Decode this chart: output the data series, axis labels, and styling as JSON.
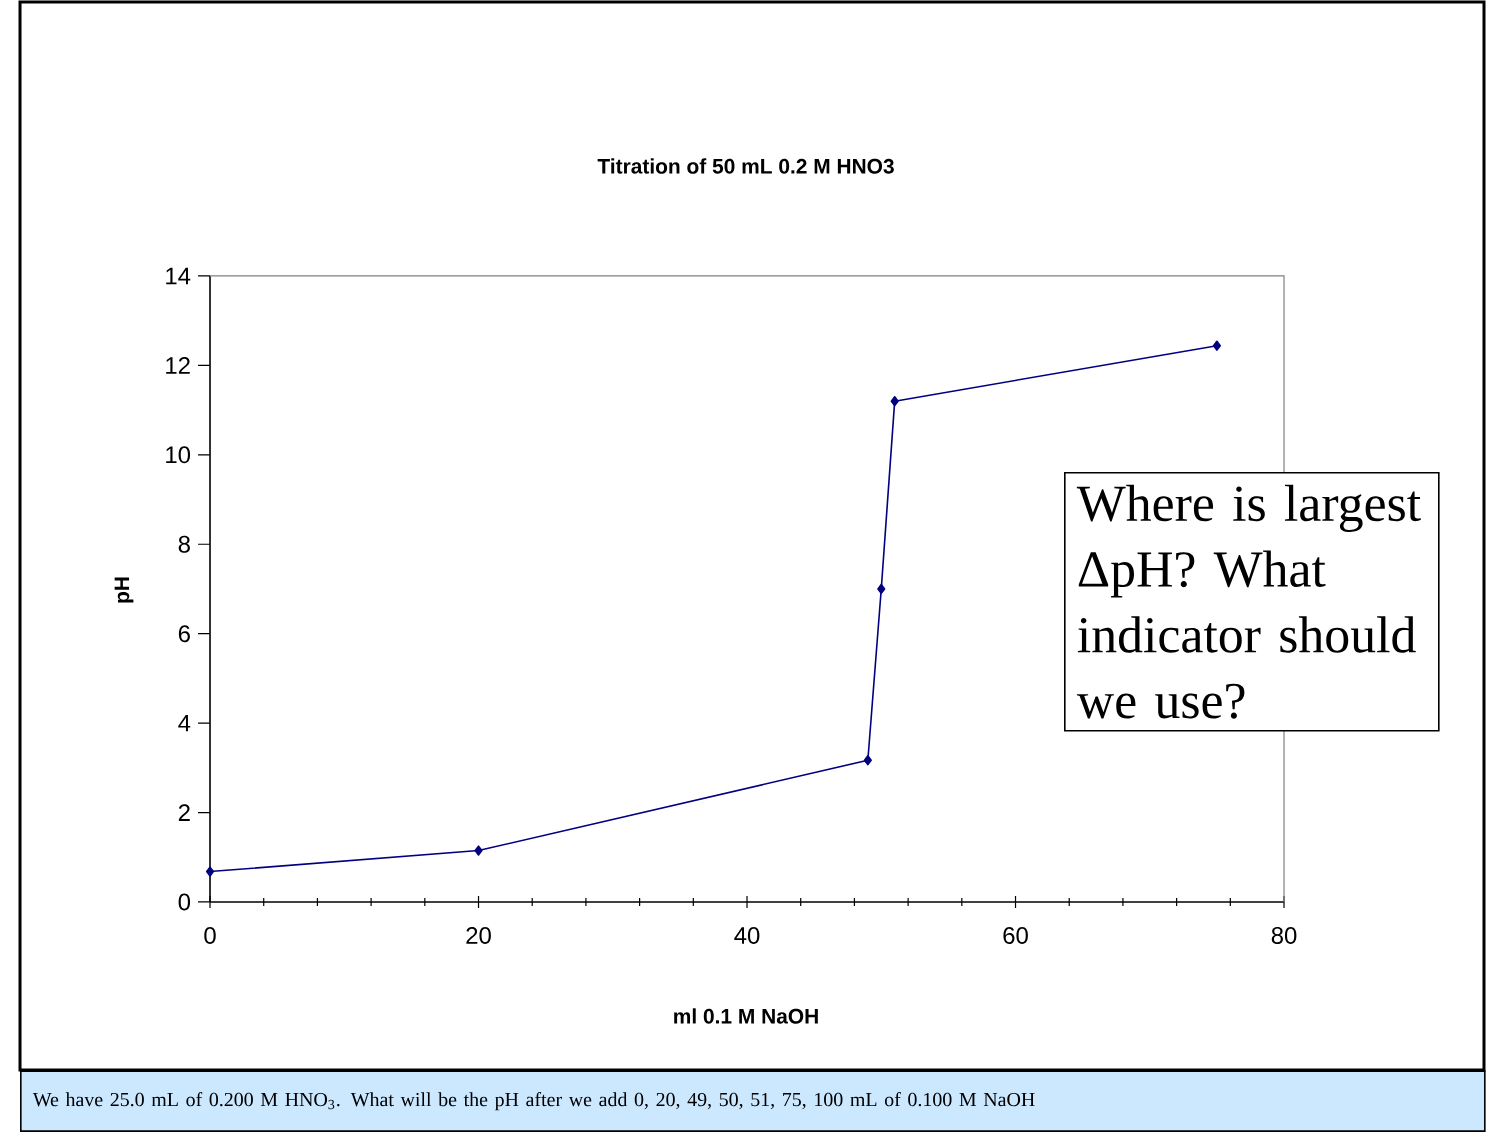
{
  "chart_data": {
    "type": "line",
    "title": "Titration of 50 mL 0.2 M HNO3",
    "xlabel": "ml 0.1 M NaOH",
    "ylabel": "pH",
    "x": [
      0,
      20,
      49,
      50,
      51,
      75
    ],
    "series": [
      {
        "color": "#000080",
        "values": [
          0.68,
          1.15,
          3.17,
          7.0,
          11.2,
          12.44
        ]
      }
    ],
    "xlim": [
      0,
      80
    ],
    "xticks": [
      0,
      20,
      40,
      60,
      80
    ],
    "ylim": [
      0,
      14
    ],
    "yticks": [
      0,
      2,
      4,
      6,
      8,
      10,
      12,
      14
    ],
    "grid": false,
    "marker": "diamond",
    "line_style": "solid",
    "annotations": [
      "Where is largest ΔpH? What indicator should we use?",
      "We have 25.0 mL of 0.200 M HNO$_{3}$. What will be the pH after we add 0, 20, 49, 50, 51, 75, 100 mL of 0.100 M NaOH"
    ]
  }
}
